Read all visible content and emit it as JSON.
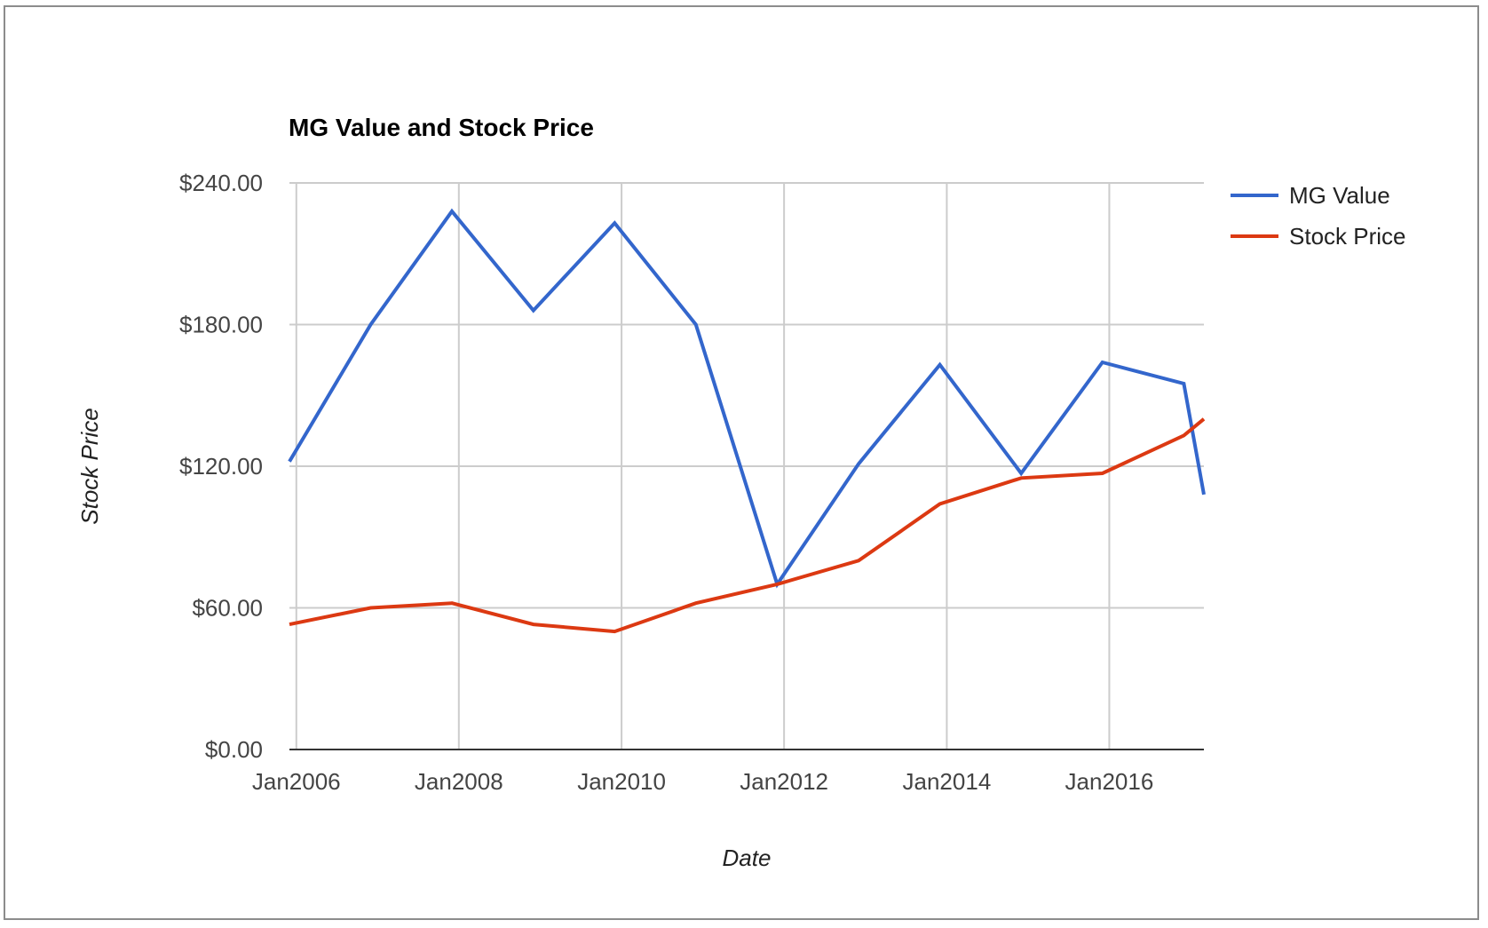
{
  "chart_data": {
    "type": "line",
    "title": "MG Value and Stock Price",
    "xlabel": "Date",
    "ylabel": "Stock Price",
    "x_tick_labels": [
      "Jan2006",
      "Jan2008",
      "Jan2010",
      "Jan2012",
      "Jan2014",
      "Jan2016"
    ],
    "y_tick_labels": [
      "$0.00",
      "$60.00",
      "$120.00",
      "$180.00",
      "$240.00"
    ],
    "y_ticks": [
      0,
      60,
      120,
      180,
      240
    ],
    "ylim": [
      0,
      240
    ],
    "xlim": [
      "2005-12-01",
      "2017-03-01"
    ],
    "grid": true,
    "legend_position": "right",
    "x": [
      "2005-12-01",
      "2006-12-01",
      "2007-12-01",
      "2008-12-01",
      "2009-12-01",
      "2010-12-01",
      "2011-12-01",
      "2012-12-01",
      "2013-12-01",
      "2014-12-01",
      "2015-12-01",
      "2016-12-01",
      "2017-03-01"
    ],
    "series": [
      {
        "name": "MG Value",
        "color": "#3366cc",
        "values": [
          122,
          180,
          228,
          186,
          223,
          180,
          70,
          121,
          163,
          117,
          164,
          155,
          108
        ]
      },
      {
        "name": "Stock Price",
        "color": "#dc3912",
        "values": [
          53,
          60,
          62,
          53,
          50,
          62,
          70,
          80,
          104,
          115,
          117,
          133,
          140
        ]
      }
    ]
  }
}
